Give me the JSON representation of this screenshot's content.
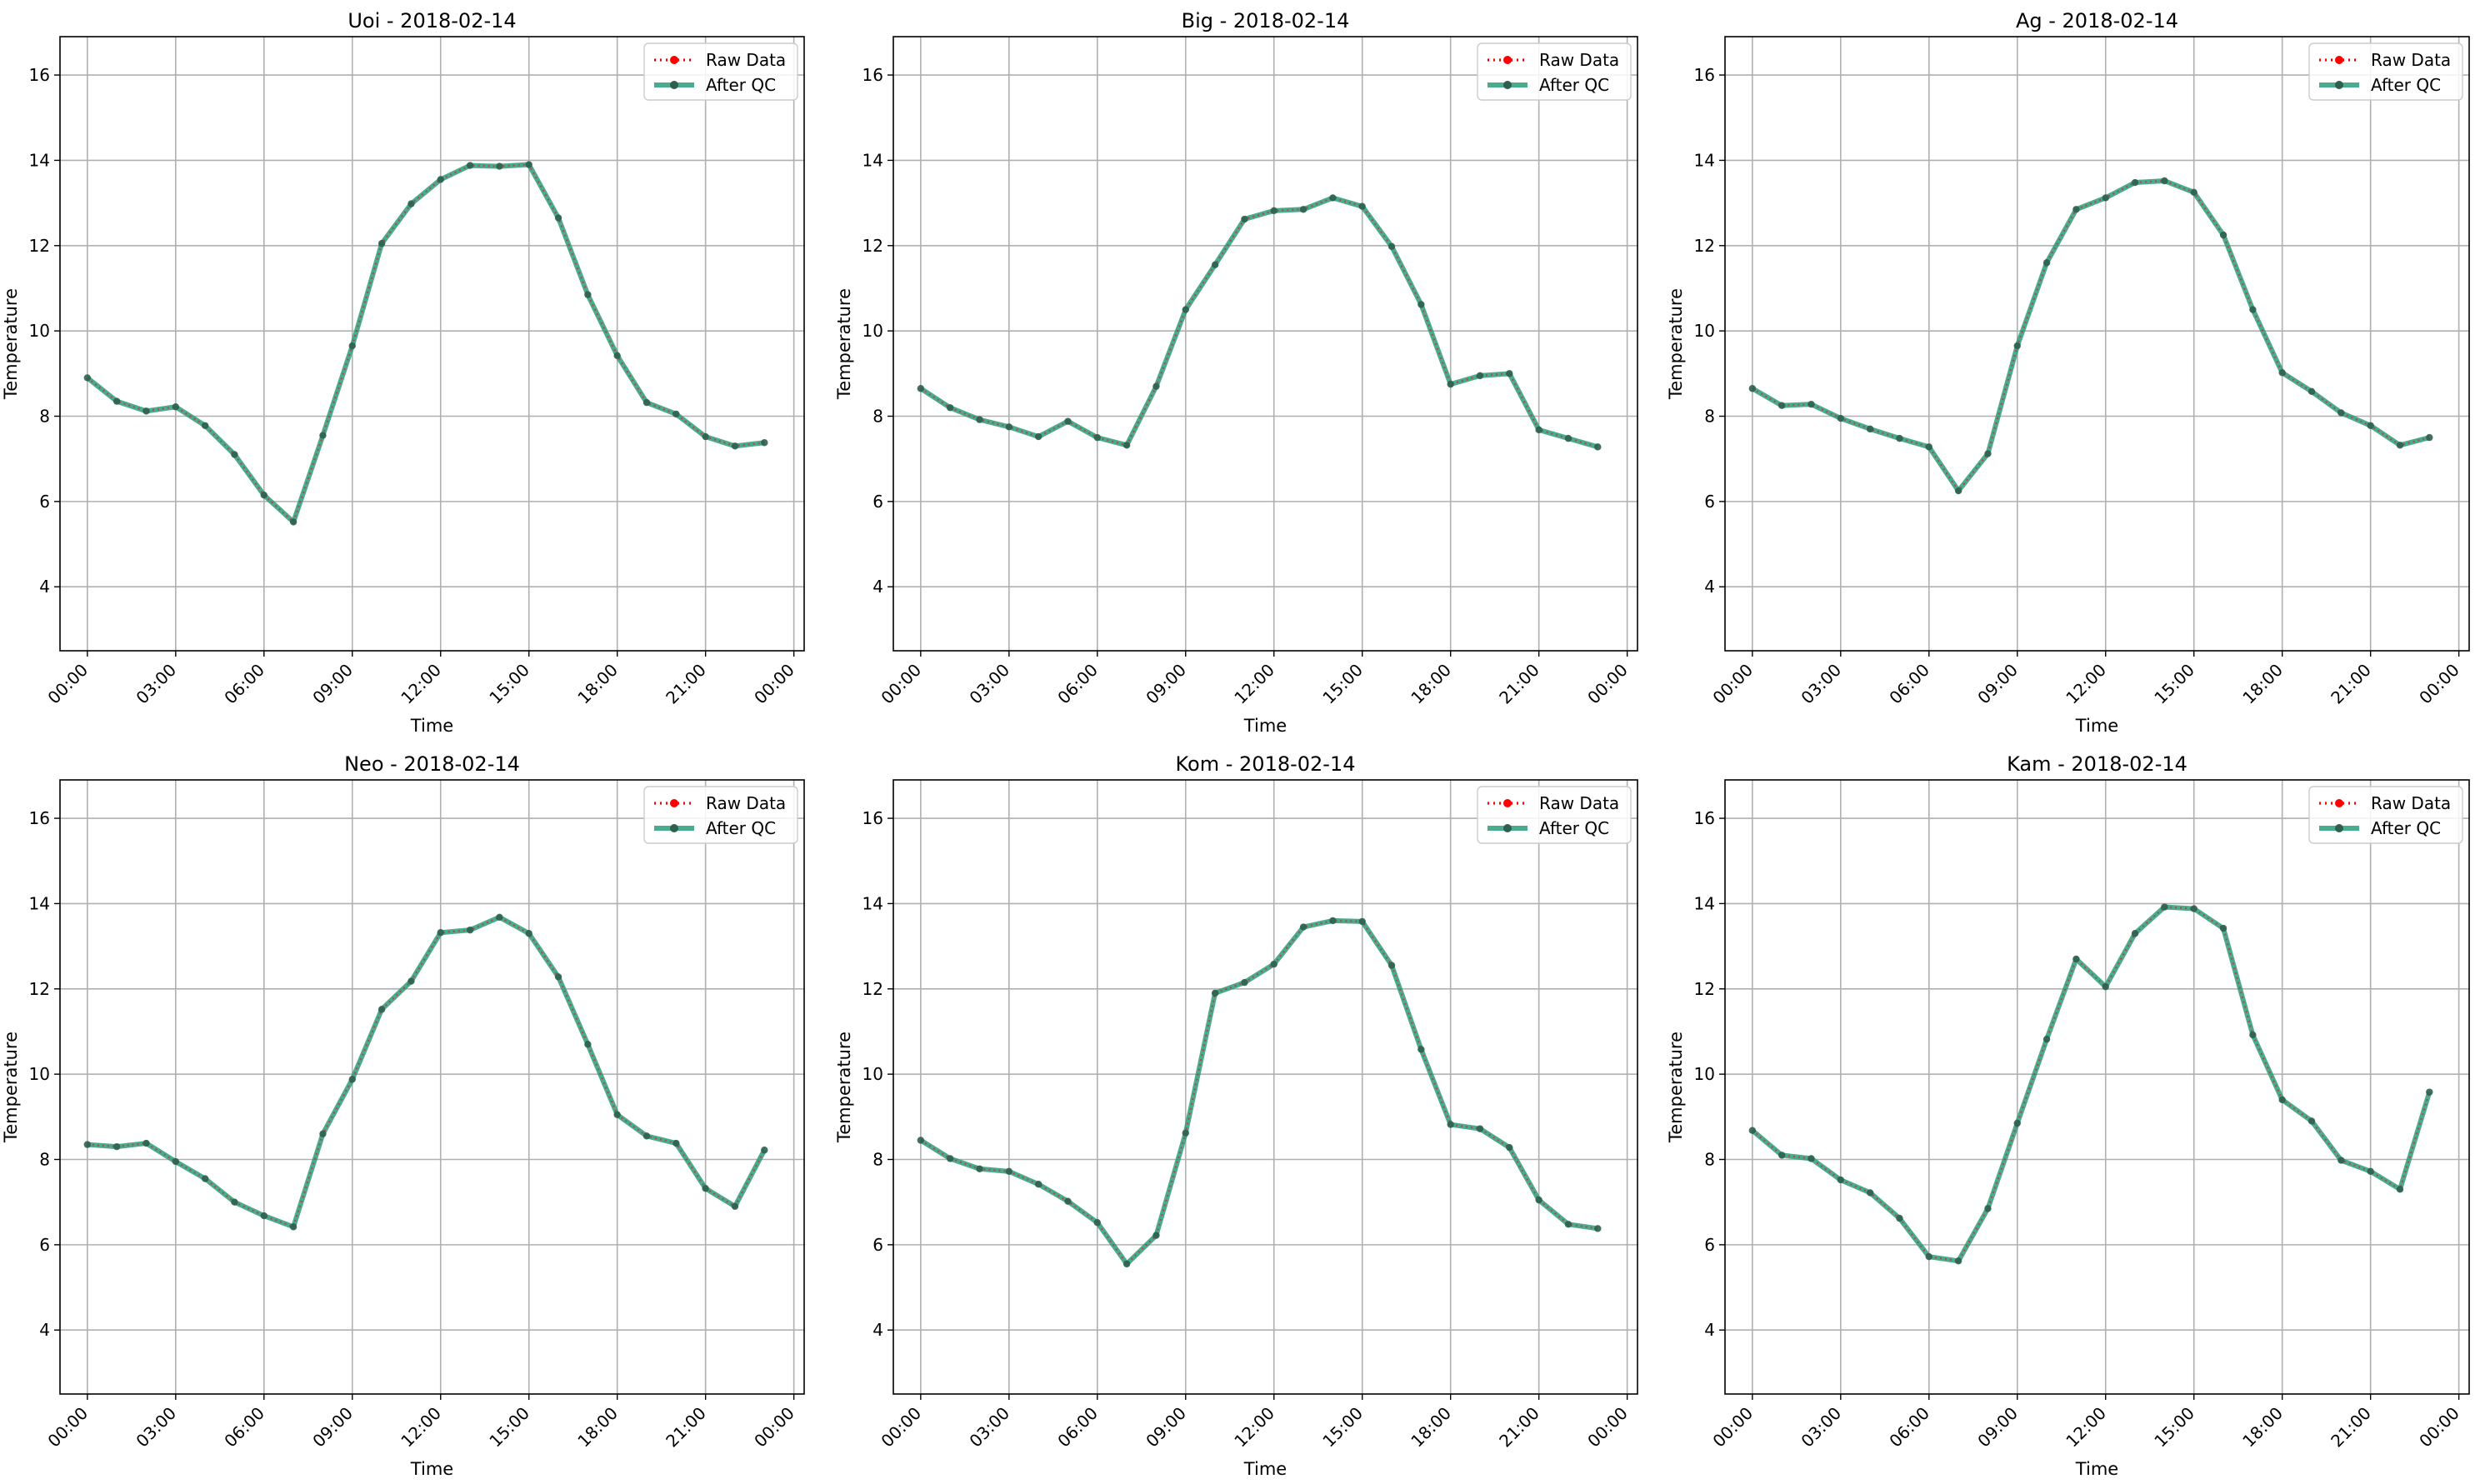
{
  "chart_data": [
    {
      "type": "line",
      "title": "Uoi - 2018-02-14",
      "xlabel": "Time",
      "ylabel": "Temperature",
      "x_ticks": [
        "00:00",
        "03:00",
        "06:00",
        "09:00",
        "12:00",
        "15:00",
        "18:00",
        "21:00",
        "00:00"
      ],
      "y_ticks": [
        4,
        6,
        8,
        10,
        12,
        14,
        16
      ],
      "ylim": [
        2.5,
        16.9
      ],
      "grid": true,
      "legend_position": "top-right",
      "x": [
        "00:00",
        "01:00",
        "02:00",
        "03:00",
        "04:00",
        "05:00",
        "06:00",
        "07:00",
        "08:00",
        "09:00",
        "10:00",
        "11:00",
        "12:00",
        "13:00",
        "14:00",
        "15:00",
        "16:00",
        "17:00",
        "18:00",
        "19:00",
        "20:00",
        "21:00",
        "22:00",
        "23:00"
      ],
      "series": [
        {
          "name": "Raw Data",
          "color": "#ff0000",
          "style": "dotted",
          "values": [
            8.9,
            8.35,
            8.12,
            8.22,
            7.78,
            7.1,
            6.15,
            5.52,
            7.55,
            9.65,
            12.05,
            12.98,
            13.55,
            13.88,
            13.86,
            13.9,
            12.65,
            10.85,
            9.42,
            8.32,
            8.05,
            7.52,
            7.3,
            7.38
          ]
        },
        {
          "name": "After QC",
          "color": "#2a9d7a",
          "style": "solid",
          "values": [
            8.9,
            8.35,
            8.12,
            8.22,
            7.78,
            7.1,
            6.15,
            5.52,
            7.55,
            9.65,
            12.05,
            12.98,
            13.55,
            13.88,
            13.86,
            13.9,
            12.65,
            10.85,
            9.42,
            8.32,
            8.05,
            7.52,
            7.3,
            7.38
          ]
        }
      ]
    },
    {
      "type": "line",
      "title": "Big - 2018-02-14",
      "xlabel": "Time",
      "ylabel": "Temperature",
      "x_ticks": [
        "00:00",
        "03:00",
        "06:00",
        "09:00",
        "12:00",
        "15:00",
        "18:00",
        "21:00",
        "00:00"
      ],
      "y_ticks": [
        4,
        6,
        8,
        10,
        12,
        14,
        16
      ],
      "ylim": [
        2.5,
        16.9
      ],
      "grid": true,
      "legend_position": "top-right",
      "x": [
        "00:00",
        "01:00",
        "02:00",
        "03:00",
        "04:00",
        "05:00",
        "06:00",
        "07:00",
        "08:00",
        "09:00",
        "10:00",
        "11:00",
        "12:00",
        "13:00",
        "14:00",
        "15:00",
        "16:00",
        "17:00",
        "18:00",
        "19:00",
        "20:00",
        "21:00",
        "22:00",
        "23:00"
      ],
      "series": [
        {
          "name": "Raw Data",
          "color": "#ff0000",
          "style": "dotted",
          "values": [
            8.65,
            8.2,
            7.92,
            7.75,
            7.52,
            7.88,
            7.5,
            7.32,
            8.7,
            10.5,
            11.55,
            12.62,
            12.82,
            12.85,
            13.12,
            12.92,
            11.98,
            10.62,
            8.75,
            8.95,
            9.0,
            7.68,
            7.48,
            7.28
          ]
        },
        {
          "name": "After QC",
          "color": "#2a9d7a",
          "style": "solid",
          "values": [
            8.65,
            8.2,
            7.92,
            7.75,
            7.52,
            7.88,
            7.5,
            7.32,
            8.7,
            10.5,
            11.55,
            12.62,
            12.82,
            12.85,
            13.12,
            12.92,
            11.98,
            10.62,
            8.75,
            8.95,
            9.0,
            7.68,
            7.48,
            7.28
          ]
        }
      ]
    },
    {
      "type": "line",
      "title": "Ag - 2018-02-14",
      "xlabel": "Time",
      "ylabel": "Temperature",
      "x_ticks": [
        "00:00",
        "03:00",
        "06:00",
        "09:00",
        "12:00",
        "15:00",
        "18:00",
        "21:00",
        "00:00"
      ],
      "y_ticks": [
        4,
        6,
        8,
        10,
        12,
        14,
        16
      ],
      "ylim": [
        2.5,
        16.9
      ],
      "grid": true,
      "legend_position": "top-right",
      "x": [
        "00:00",
        "01:00",
        "02:00",
        "03:00",
        "04:00",
        "05:00",
        "06:00",
        "07:00",
        "08:00",
        "09:00",
        "10:00",
        "11:00",
        "12:00",
        "13:00",
        "14:00",
        "15:00",
        "16:00",
        "17:00",
        "18:00",
        "19:00",
        "20:00",
        "21:00",
        "22:00",
        "23:00"
      ],
      "series": [
        {
          "name": "Raw Data",
          "color": "#ff0000",
          "style": "dotted",
          "values": [
            8.65,
            8.25,
            8.28,
            7.95,
            7.7,
            7.48,
            7.28,
            6.25,
            7.12,
            9.65,
            11.6,
            12.85,
            13.12,
            13.48,
            13.52,
            13.25,
            12.25,
            10.5,
            9.02,
            8.58,
            8.08,
            7.78,
            7.32,
            7.5
          ]
        },
        {
          "name": "After QC",
          "color": "#2a9d7a",
          "style": "solid",
          "values": [
            8.65,
            8.25,
            8.28,
            7.95,
            7.7,
            7.48,
            7.28,
            6.25,
            7.12,
            9.65,
            11.6,
            12.85,
            13.12,
            13.48,
            13.52,
            13.25,
            12.25,
            10.5,
            9.02,
            8.58,
            8.08,
            7.78,
            7.32,
            7.5
          ]
        }
      ]
    },
    {
      "type": "line",
      "title": "Neo - 2018-02-14",
      "xlabel": "Time",
      "ylabel": "Temperature",
      "x_ticks": [
        "00:00",
        "03:00",
        "06:00",
        "09:00",
        "12:00",
        "15:00",
        "18:00",
        "21:00",
        "00:00"
      ],
      "y_ticks": [
        4,
        6,
        8,
        10,
        12,
        14,
        16
      ],
      "ylim": [
        2.5,
        16.9
      ],
      "grid": true,
      "legend_position": "top-right",
      "x": [
        "00:00",
        "01:00",
        "02:00",
        "03:00",
        "04:00",
        "05:00",
        "06:00",
        "07:00",
        "08:00",
        "09:00",
        "10:00",
        "11:00",
        "12:00",
        "13:00",
        "14:00",
        "15:00",
        "16:00",
        "17:00",
        "18:00",
        "19:00",
        "20:00",
        "21:00",
        "22:00",
        "23:00"
      ],
      "series": [
        {
          "name": "Raw Data",
          "color": "#ff0000",
          "style": "dotted",
          "values": [
            8.35,
            8.3,
            8.38,
            7.95,
            7.55,
            7.0,
            6.68,
            6.42,
            8.6,
            9.88,
            11.52,
            12.18,
            13.32,
            13.38,
            13.68,
            13.3,
            12.28,
            10.7,
            9.05,
            8.55,
            8.38,
            7.32,
            6.9,
            8.22
          ]
        },
        {
          "name": "After QC",
          "color": "#2a9d7a",
          "style": "solid",
          "values": [
            8.35,
            8.3,
            8.38,
            7.95,
            7.55,
            7.0,
            6.68,
            6.42,
            8.6,
            9.88,
            11.52,
            12.18,
            13.32,
            13.38,
            13.68,
            13.3,
            12.28,
            10.7,
            9.05,
            8.55,
            8.38,
            7.32,
            6.9,
            8.22
          ]
        }
      ]
    },
    {
      "type": "line",
      "title": "Kom - 2018-02-14",
      "xlabel": "Time",
      "ylabel": "Temperature",
      "x_ticks": [
        "00:00",
        "03:00",
        "06:00",
        "09:00",
        "12:00",
        "15:00",
        "18:00",
        "21:00",
        "00:00"
      ],
      "y_ticks": [
        4,
        6,
        8,
        10,
        12,
        14,
        16
      ],
      "ylim": [
        2.5,
        16.9
      ],
      "grid": true,
      "legend_position": "top-right",
      "x": [
        "00:00",
        "01:00",
        "02:00",
        "03:00",
        "04:00",
        "05:00",
        "06:00",
        "07:00",
        "08:00",
        "09:00",
        "10:00",
        "11:00",
        "12:00",
        "13:00",
        "14:00",
        "15:00",
        "16:00",
        "17:00",
        "18:00",
        "19:00",
        "20:00",
        "21:00",
        "22:00",
        "23:00"
      ],
      "series": [
        {
          "name": "Raw Data",
          "color": "#ff0000",
          "style": "dotted",
          "values": [
            8.45,
            8.02,
            7.78,
            7.72,
            7.42,
            7.02,
            6.52,
            5.55,
            6.22,
            8.62,
            11.9,
            12.15,
            12.58,
            13.45,
            13.6,
            13.58,
            12.55,
            10.58,
            8.82,
            8.72,
            8.28,
            7.05,
            6.48,
            6.38
          ]
        },
        {
          "name": "After QC",
          "color": "#2a9d7a",
          "style": "solid",
          "values": [
            8.45,
            8.02,
            7.78,
            7.72,
            7.42,
            7.02,
            6.52,
            5.55,
            6.22,
            8.62,
            11.9,
            12.15,
            12.58,
            13.45,
            13.6,
            13.58,
            12.55,
            10.58,
            8.82,
            8.72,
            8.28,
            7.05,
            6.48,
            6.38
          ]
        }
      ]
    },
    {
      "type": "line",
      "title": "Kam - 2018-02-14",
      "xlabel": "Time",
      "ylabel": "Temperature",
      "x_ticks": [
        "00:00",
        "03:00",
        "06:00",
        "09:00",
        "12:00",
        "15:00",
        "18:00",
        "21:00",
        "00:00"
      ],
      "y_ticks": [
        4,
        6,
        8,
        10,
        12,
        14,
        16
      ],
      "ylim": [
        2.5,
        16.9
      ],
      "grid": true,
      "legend_position": "top-right",
      "x": [
        "00:00",
        "01:00",
        "02:00",
        "03:00",
        "04:00",
        "05:00",
        "06:00",
        "07:00",
        "08:00",
        "09:00",
        "10:00",
        "11:00",
        "12:00",
        "13:00",
        "14:00",
        "15:00",
        "16:00",
        "17:00",
        "18:00",
        "19:00",
        "20:00",
        "21:00",
        "22:00",
        "23:00"
      ],
      "series": [
        {
          "name": "Raw Data",
          "color": "#ff0000",
          "style": "dotted",
          "values": [
            8.68,
            8.1,
            8.02,
            7.52,
            7.22,
            6.62,
            5.72,
            5.62,
            6.85,
            8.85,
            10.82,
            12.7,
            12.05,
            13.3,
            13.92,
            13.88,
            13.42,
            10.92,
            9.4,
            8.9,
            7.98,
            7.72,
            7.3,
            9.58
          ]
        },
        {
          "name": "After QC",
          "color": "#2a9d7a",
          "style": "solid",
          "values": [
            8.68,
            8.1,
            8.02,
            7.52,
            7.22,
            6.62,
            5.72,
            5.62,
            6.85,
            8.85,
            10.82,
            12.7,
            12.05,
            13.3,
            13.92,
            13.88,
            13.42,
            10.92,
            9.4,
            8.9,
            7.98,
            7.72,
            7.3,
            9.58
          ]
        }
      ]
    }
  ]
}
